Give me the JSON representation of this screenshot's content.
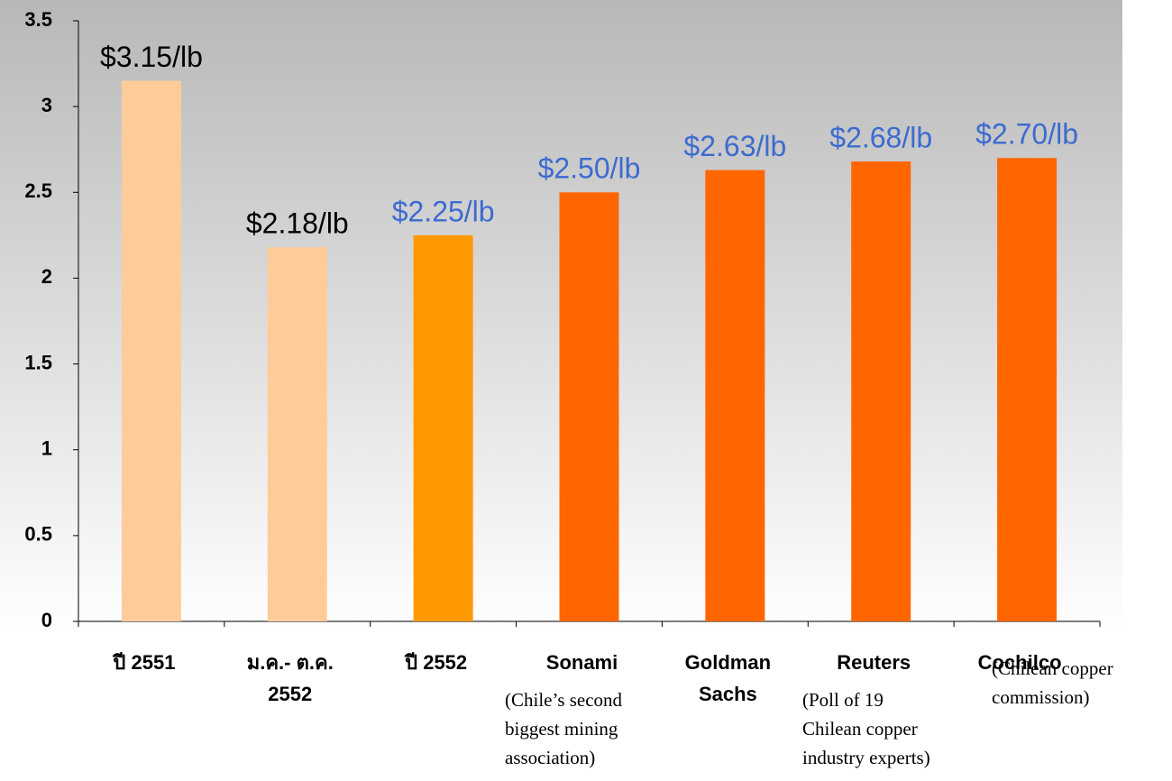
{
  "chart_data": {
    "type": "bar",
    "categories": [
      [
        "ปี 2551"
      ],
      [
        "ม.ค.- ต.ค.",
        "2552"
      ],
      [
        "ปี 2552"
      ],
      [
        "Sonami"
      ],
      [
        "Goldman",
        "Sachs"
      ],
      [
        "Reuters"
      ],
      [
        "Cochilco"
      ]
    ],
    "notes": [
      null,
      null,
      null,
      [
        "(Chile’s second",
        "biggest mining",
        "association)"
      ],
      null,
      [
        "(Poll of 19",
        "Chilean copper",
        "industry experts)"
      ],
      [
        "(Chilean copper",
        "commission)"
      ]
    ],
    "values": [
      3.15,
      2.18,
      2.25,
      2.5,
      2.63,
      2.68,
      2.7
    ],
    "value_labels": [
      "$3.15/lb",
      "$2.18/lb",
      "$2.25/lb",
      "$2.50/lb",
      "$2.63/lb",
      "$2.68/lb",
      "$2.70/lb"
    ],
    "colors": [
      "#ffcc99",
      "#ffcc99",
      "#ff9900",
      "#ff6600",
      "#ff6600",
      "#ff6600",
      "#ff6600"
    ],
    "value_label_colors": [
      "#000000",
      "#000000",
      "#3c6bd0",
      "#3c6bd0",
      "#3c6bd0",
      "#3c6bd0",
      "#3c6bd0"
    ],
    "ylim": [
      0,
      3.5
    ],
    "yticks": [
      0,
      0.5,
      1,
      1.5,
      2,
      2.5,
      3,
      3.5
    ]
  }
}
